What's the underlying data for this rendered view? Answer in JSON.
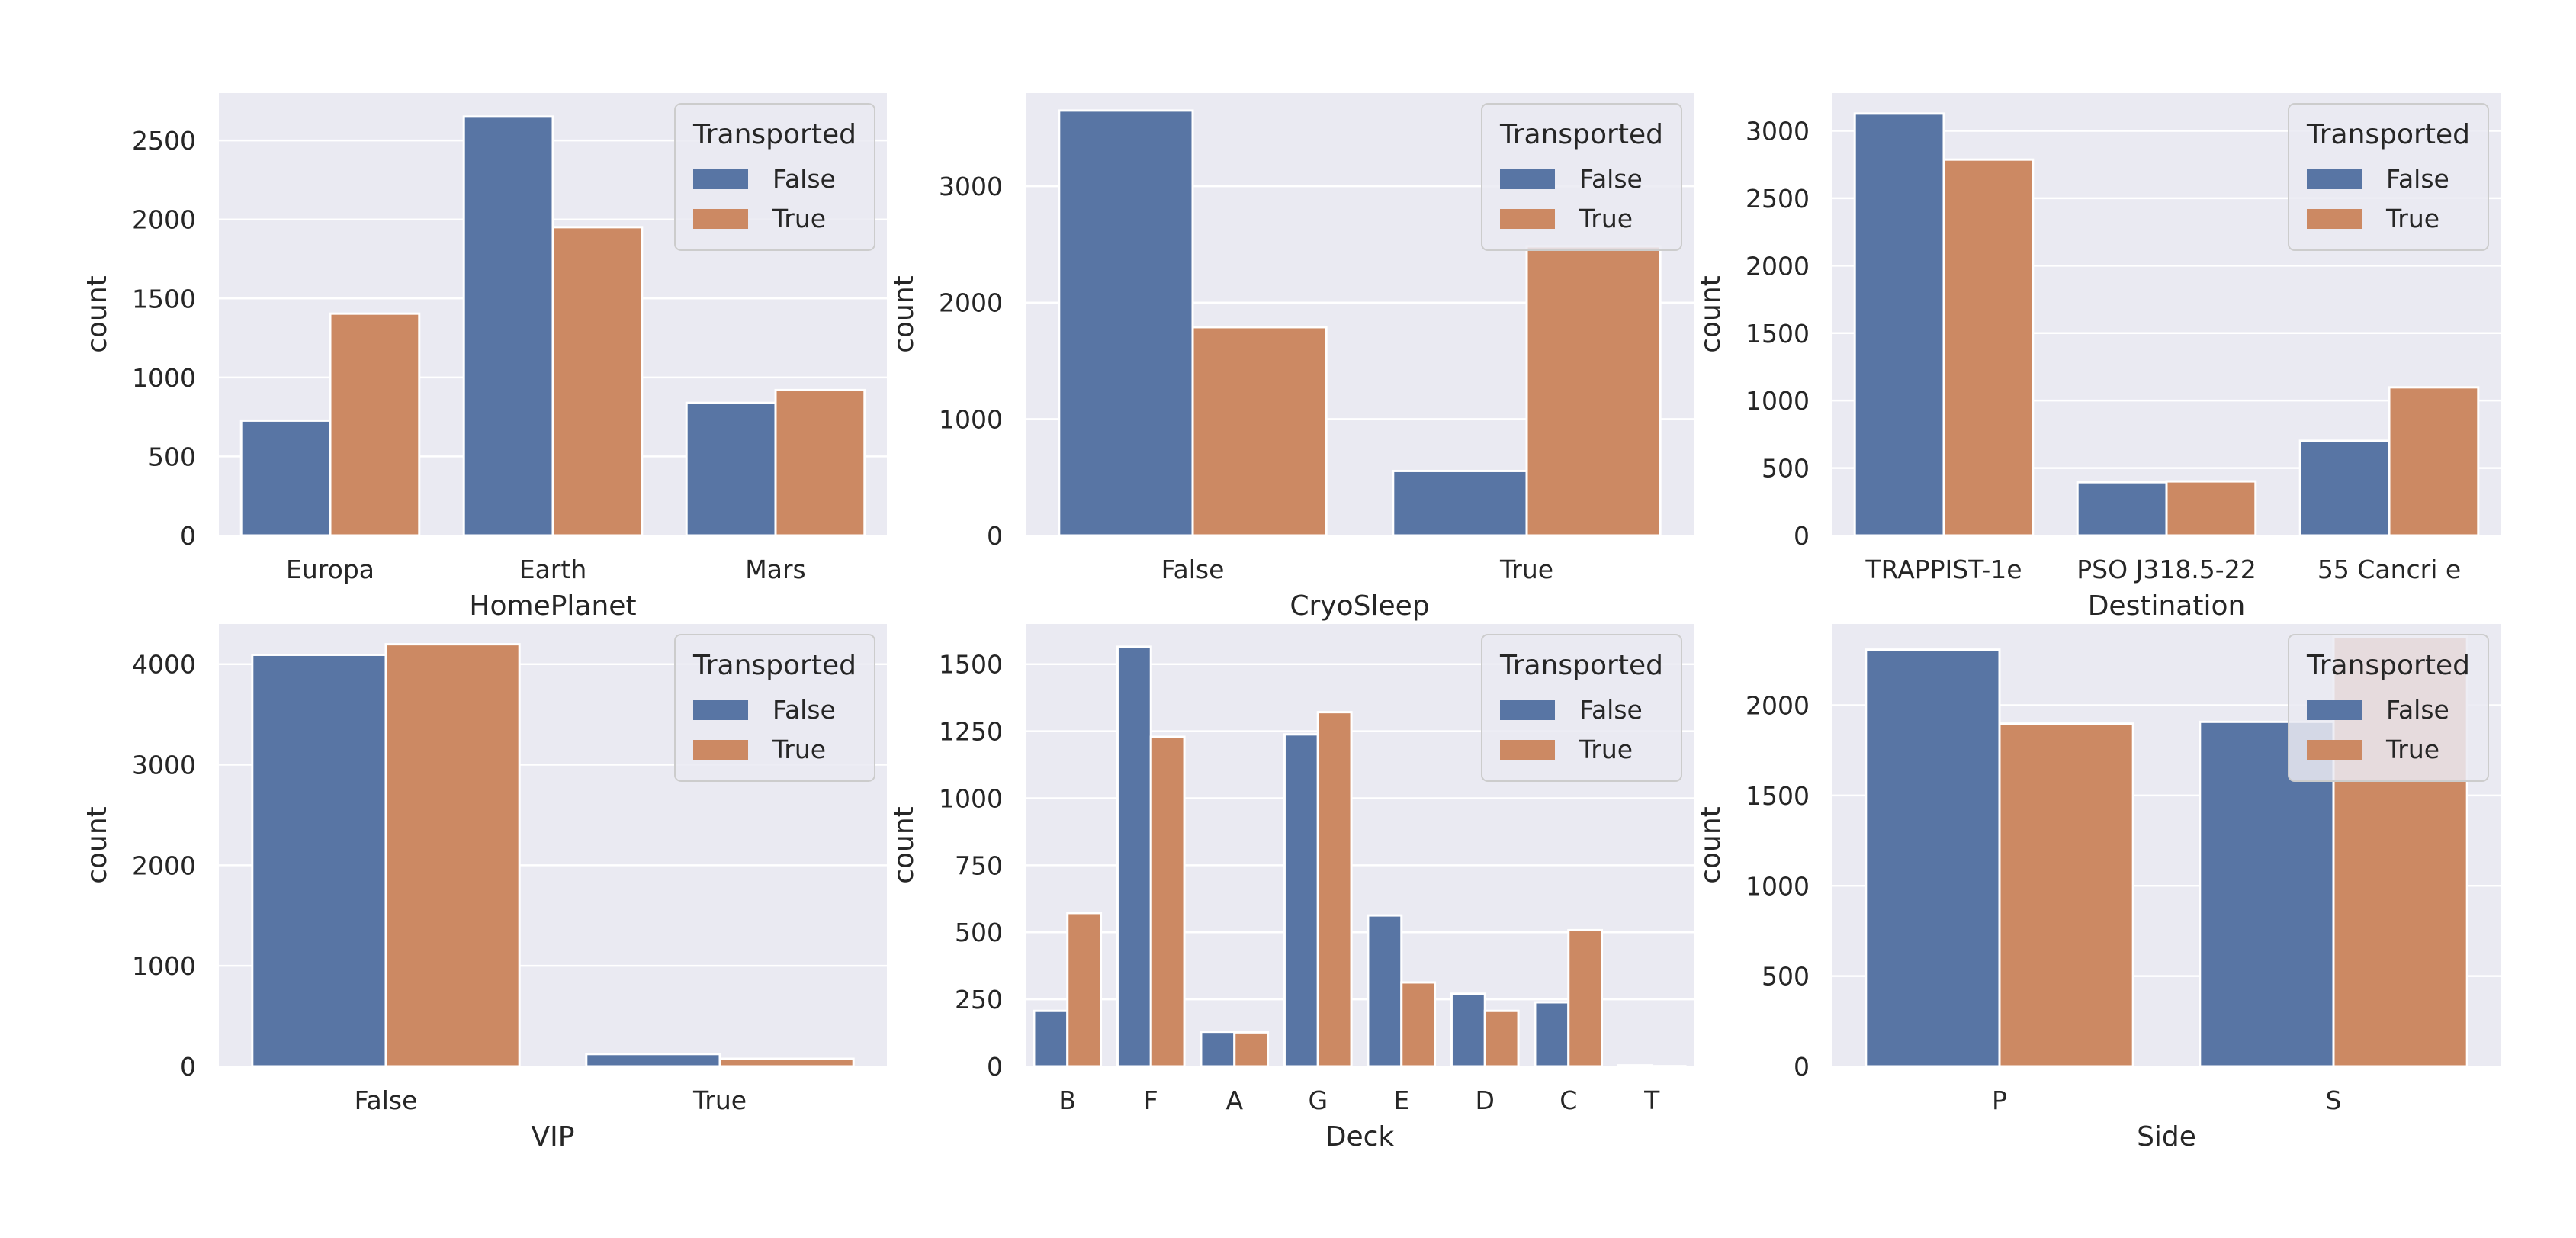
{
  "legend_title": "Transported",
  "colors": {
    "False": "#5875a4",
    "True": "#cc8963",
    "axes_bg": "#eaeaf2",
    "grid": "#ffffff",
    "legend_bg": "#eaeaf2",
    "legend_border": "#cccccc"
  },
  "chart_data": [
    {
      "type": "bar",
      "xlabel": "HomePlanet",
      "ylabel": "count",
      "categories": [
        "Europa",
        "Earth",
        "Mars"
      ],
      "ylim": [
        0,
        2800
      ],
      "yticks": [
        0,
        500,
        1000,
        1500,
        2000,
        2500
      ],
      "series": [
        {
          "name": "False",
          "values": [
            727,
            2651,
            839
          ]
        },
        {
          "name": "True",
          "values": [
            1404,
            1951,
            920
          ]
        }
      ],
      "legend": "top-right",
      "grid": true
    },
    {
      "type": "bar",
      "xlabel": "CryoSleep",
      "ylabel": "count",
      "categories": [
        "False",
        "True"
      ],
      "ylim": [
        0,
        3800
      ],
      "yticks": [
        0,
        1000,
        2000,
        3000
      ],
      "series": [
        {
          "name": "False",
          "values": [
            3650,
            554
          ]
        },
        {
          "name": "True",
          "values": [
            1789,
            2483
          ]
        }
      ],
      "legend": "top-right",
      "grid": true
    },
    {
      "type": "bar",
      "xlabel": "Destination",
      "ylabel": "count",
      "categories": [
        "TRAPPIST-1e",
        "PSO J318.5-22",
        "55 Cancri e"
      ],
      "ylim": [
        0,
        3280
      ],
      "yticks": [
        0,
        500,
        1000,
        1500,
        2000,
        2500,
        3000
      ],
      "series": [
        {
          "name": "False",
          "values": [
            3128,
            395,
            702
          ]
        },
        {
          "name": "True",
          "values": [
            2787,
            401,
            1098
          ]
        }
      ],
      "legend": "top-right",
      "grid": true
    },
    {
      "type": "bar",
      "xlabel": "VIP",
      "ylabel": "count",
      "categories": [
        "False",
        "True"
      ],
      "ylim": [
        0,
        4400
      ],
      "yticks": [
        0,
        1000,
        2000,
        3000,
        4000
      ],
      "series": [
        {
          "name": "False",
          "values": [
            4093,
            123
          ]
        },
        {
          "name": "True",
          "values": [
            4198,
            76
          ]
        }
      ],
      "legend": "top-right",
      "grid": true
    },
    {
      "type": "bar",
      "xlabel": "Deck",
      "ylabel": "count",
      "categories": [
        "B",
        "F",
        "A",
        "G",
        "E",
        "D",
        "C",
        "T"
      ],
      "ylim": [
        0,
        1650
      ],
      "yticks": [
        0,
        250,
        500,
        750,
        1000,
        1250,
        1500
      ],
      "series": [
        {
          "name": "False",
          "values": [
            207,
            1565,
            129,
            1238,
            563,
            271,
            239,
            4
          ]
        },
        {
          "name": "True",
          "values": [
            572,
            1229,
            127,
            1321,
            313,
            207,
            508,
            1
          ]
        }
      ],
      "legend": "top-right",
      "grid": true
    },
    {
      "type": "bar",
      "xlabel": "Side",
      "ylabel": "count",
      "categories": [
        "P",
        "S"
      ],
      "ylim": [
        0,
        2450
      ],
      "yticks": [
        0,
        500,
        1000,
        1500,
        2000
      ],
      "series": [
        {
          "name": "False",
          "values": [
            2308,
            1908
          ]
        },
        {
          "name": "True",
          "values": [
            1898,
            2380
          ]
        }
      ],
      "legend": "top-right",
      "grid": true
    }
  ]
}
